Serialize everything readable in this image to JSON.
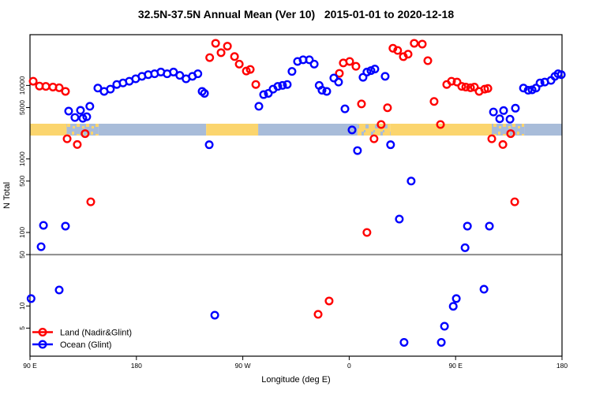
{
  "title": "32.5N-37.5N Annual Mean (Ver 10)   2015-01-01 to 2020-12-18",
  "chart_data": {
    "type": "scatter",
    "title": "32.5N-37.5N Annual Mean (Ver 10)   2015-01-01 to 2020-12-18",
    "xlabel": "Longitude (deg E)",
    "ylabel": "N Total",
    "x_axis": {
      "description": "longitude axis spanning 450 deg, wrapping 90E-180-90W-0-90E-180",
      "span_deg": 450,
      "ticks": [
        {
          "off": 0,
          "label": "90 E"
        },
        {
          "off": 90,
          "label": "180"
        },
        {
          "off": 180,
          "label": "90 W"
        },
        {
          "off": 270,
          "label": "0"
        },
        {
          "off": 360,
          "label": "90 E"
        },
        {
          "off": 450,
          "label": "180"
        }
      ]
    },
    "y_axis": {
      "scale": "log",
      "range": [
        2,
        50000
      ],
      "ticks": [
        {
          "value": 10000,
          "label": "10000"
        },
        {
          "value": 5000,
          "label": "5000"
        },
        {
          "value": 1000,
          "label": "1000"
        },
        {
          "value": 500,
          "label": "500"
        },
        {
          "value": 100,
          "label": "100"
        },
        {
          "value": 50,
          "label": "50"
        },
        {
          "value": 10,
          "label": "10"
        },
        {
          "value": 5,
          "label": "5"
        }
      ],
      "grid": false
    },
    "reference_line": {
      "value": 50,
      "color": "#8c8c8c"
    },
    "surface_band": {
      "description": "land/ocean mask strip along longitude",
      "value_range": [
        2100,
        3000
      ],
      "colors": {
        "land": "#FBD56E",
        "ocean": "#A8BCD9"
      },
      "segments": [
        {
          "from": 0,
          "to": 31,
          "type": "land"
        },
        {
          "from": 31,
          "to": 58,
          "type": "mixed"
        },
        {
          "from": 58,
          "to": 149,
          "type": "ocean"
        },
        {
          "from": 149,
          "to": 193,
          "type": "land"
        },
        {
          "from": 193,
          "to": 277,
          "type": "ocean"
        },
        {
          "from": 277,
          "to": 305,
          "type": "mixed-land"
        },
        {
          "from": 305,
          "to": 390.6,
          "type": "land"
        },
        {
          "from": 390.6,
          "to": 418,
          "type": "mixed"
        },
        {
          "from": 418,
          "to": 450,
          "type": "ocean"
        }
      ]
    },
    "legend": {
      "position": "bottom-left",
      "items": [
        {
          "label": "Land (Nadir&Glint)",
          "color": "#ff0000"
        },
        {
          "label": "Ocean (Glint)",
          "color": "#0000ff"
        }
      ]
    },
    "series": [
      {
        "name": "Land (Nadir&Glint)",
        "color": "#ff0000",
        "marker": "open-circle",
        "points": [
          [
            2.7,
            11400
          ],
          [
            8,
            9800
          ],
          [
            13.4,
            9700
          ],
          [
            19.4,
            9500
          ],
          [
            24.7,
            9300
          ],
          [
            30,
            8300
          ],
          [
            31.4,
            1880
          ],
          [
            40,
            1570
          ],
          [
            46.6,
            2210
          ],
          [
            51.4,
            261
          ],
          [
            152,
            23900
          ],
          [
            157,
            37400
          ],
          [
            161.6,
            27900
          ],
          [
            167,
            34200
          ],
          [
            173,
            24700
          ],
          [
            177,
            19500
          ],
          [
            183,
            15700
          ],
          [
            186.3,
            16500
          ],
          [
            191,
            10300
          ],
          [
            243.7,
            7.7
          ],
          [
            253,
            11.7
          ],
          [
            261.7,
            14600
          ],
          [
            265,
            20200
          ],
          [
            270.4,
            21200
          ],
          [
            275.7,
            18200
          ],
          [
            280.4,
            5600
          ],
          [
            285,
            100
          ],
          [
            291,
            1880
          ],
          [
            297,
            2940
          ],
          [
            302.4,
            4970
          ],
          [
            307,
            32000
          ],
          [
            311,
            29900
          ],
          [
            315.8,
            24600
          ],
          [
            319.8,
            26600
          ],
          [
            325,
            37400
          ],
          [
            331.8,
            36500
          ],
          [
            336.5,
            21700
          ],
          [
            341.8,
            6050
          ],
          [
            347.2,
            2940
          ],
          [
            352.5,
            10300
          ],
          [
            356.5,
            11400
          ],
          [
            361.2,
            11100
          ],
          [
            365.2,
            9700
          ],
          [
            368.6,
            9500
          ],
          [
            372.6,
            9300
          ],
          [
            375.9,
            9500
          ],
          [
            379.9,
            8300
          ],
          [
            384.6,
            8900
          ],
          [
            387.3,
            9100
          ],
          [
            390.6,
            1880
          ],
          [
            400,
            1570
          ],
          [
            406.6,
            2210
          ],
          [
            410,
            261
          ]
        ]
      },
      {
        "name": "Ocean (Glint)",
        "color": "#0000ff",
        "marker": "open-circle",
        "points": [
          [
            0.9,
            12.6
          ],
          [
            9.4,
            64
          ],
          [
            11.4,
            125
          ],
          [
            24.7,
            16.5
          ],
          [
            30,
            122
          ],
          [
            32.7,
            4470
          ],
          [
            38,
            3660
          ],
          [
            42.7,
            4580
          ],
          [
            44.7,
            3570
          ],
          [
            48,
            3750
          ],
          [
            50.6,
            5200
          ],
          [
            57.4,
            9200
          ],
          [
            62.7,
            8300
          ],
          [
            68,
            8900
          ],
          [
            73.4,
            10300
          ],
          [
            78.7,
            10800
          ],
          [
            84,
            11400
          ],
          [
            89.4,
            12300
          ],
          [
            94.7,
            13300
          ],
          [
            100,
            14000
          ],
          [
            105.4,
            14400
          ],
          [
            110.7,
            15200
          ],
          [
            116,
            14400
          ],
          [
            121.4,
            15200
          ],
          [
            126.7,
            13700
          ],
          [
            132,
            12300
          ],
          [
            137.4,
            13300
          ],
          [
            142,
            14400
          ],
          [
            145.6,
            8300
          ],
          [
            147.6,
            7800
          ],
          [
            151.6,
            1560
          ],
          [
            156.3,
            7.5
          ],
          [
            193.6,
            5200
          ],
          [
            197.6,
            7500
          ],
          [
            201.6,
            7800
          ],
          [
            205.6,
            8900
          ],
          [
            209.6,
            9700
          ],
          [
            213.6,
            10000
          ],
          [
            217.6,
            10300
          ],
          [
            221.6,
            15500
          ],
          [
            226.3,
            21200
          ],
          [
            231,
            22300
          ],
          [
            236.3,
            22300
          ],
          [
            240.4,
            19500
          ],
          [
            244.6,
            10000
          ],
          [
            247,
            8600
          ],
          [
            251,
            8300
          ],
          [
            257,
            12600
          ],
          [
            261,
            11100
          ],
          [
            266.4,
            4800
          ],
          [
            272.4,
            2480
          ],
          [
            277,
            1300
          ],
          [
            281.7,
            12900
          ],
          [
            285,
            15200
          ],
          [
            288.4,
            15900
          ],
          [
            291.7,
            16700
          ],
          [
            300.4,
            13300
          ],
          [
            305,
            1560
          ],
          [
            312.4,
            152
          ],
          [
            316.4,
            3.2
          ],
          [
            322.4,
            500
          ],
          [
            347.9,
            3.2
          ],
          [
            350.6,
            5.3
          ],
          [
            358,
            9.9
          ],
          [
            360.6,
            12.6
          ],
          [
            368,
            62
          ],
          [
            370,
            122
          ],
          [
            384,
            16.9
          ],
          [
            388.6,
            122
          ],
          [
            392,
            4350
          ],
          [
            397.3,
            3520
          ],
          [
            400.6,
            4550
          ],
          [
            406,
            3470
          ],
          [
            410.6,
            4900
          ],
          [
            417.4,
            9200
          ],
          [
            421.4,
            8600
          ],
          [
            424.7,
            8700
          ],
          [
            428,
            9200
          ],
          [
            431.4,
            10800
          ],
          [
            435.4,
            11100
          ],
          [
            440.7,
            11700
          ],
          [
            444,
            13300
          ],
          [
            446.7,
            14400
          ],
          [
            449.4,
            14000
          ]
        ]
      }
    ]
  }
}
